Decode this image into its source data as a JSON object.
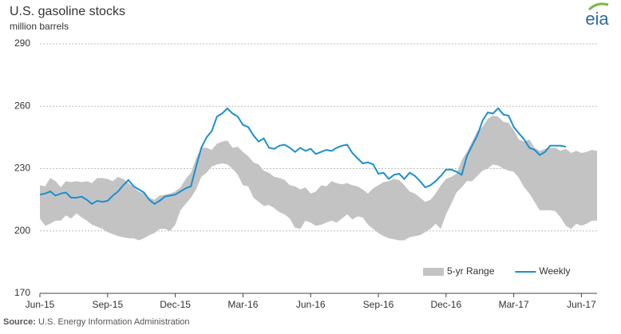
{
  "chart_data": {
    "type": "range-line",
    "title": "U.S. gasoline stocks",
    "subtitle": "million barrels",
    "logo": "eia",
    "source_label": "Source:",
    "source": "U.S. Energy Information Administration",
    "categories": [
      "Jun-15",
      null,
      null,
      null,
      null,
      null,
      null,
      null,
      null,
      null,
      null,
      null,
      null,
      "Sep-15",
      null,
      null,
      null,
      null,
      null,
      null,
      null,
      null,
      null,
      null,
      null,
      null,
      "Dec-15",
      null,
      null,
      null,
      null,
      null,
      null,
      null,
      null,
      null,
      null,
      null,
      null,
      "Mar-16",
      null,
      null,
      null,
      null,
      null,
      null,
      null,
      null,
      null,
      null,
      null,
      null,
      "Jun-16",
      null,
      null,
      null,
      null,
      null,
      null,
      null,
      null,
      null,
      null,
      null,
      null,
      "Sep-16",
      null,
      null,
      null,
      null,
      null,
      null,
      null,
      null,
      null,
      null,
      null,
      null,
      "Dec-16",
      null,
      null,
      null,
      null,
      null,
      null,
      null,
      null,
      null,
      null,
      null,
      null,
      "Mar-17",
      null,
      null,
      null,
      null,
      null,
      null,
      null,
      null,
      null,
      null,
      null,
      null,
      "Jun-17",
      null,
      null,
      null
    ],
    "series": [
      {
        "name": "5-yr Range",
        "color": "#c3c3c3",
        "low": [
          206,
          202.5,
          203.5,
          205,
          205,
          207.5,
          206,
          208.5,
          206.5,
          205,
          203,
          202,
          201,
          199.5,
          198.5,
          197.5,
          197,
          196.5,
          196.5,
          195.5,
          196.5,
          198,
          199,
          201,
          201,
          200,
          203,
          210,
          213,
          216,
          220,
          226,
          228,
          231,
          232,
          232.5,
          232,
          230,
          227,
          222,
          221.5,
          216,
          214,
          212,
          212.5,
          211,
          209,
          208,
          206,
          201.5,
          201,
          205,
          204,
          202.5,
          203,
          204,
          205,
          204,
          206,
          208,
          205.5,
          207,
          206.5,
          203,
          201,
          199,
          197.5,
          196.5,
          196,
          195.5,
          195.5,
          197,
          197.5,
          198,
          199.5,
          201,
          203.5,
          201,
          208,
          213,
          218.5,
          221,
          224,
          224,
          226.5,
          229,
          230,
          232,
          231.5,
          230,
          229,
          228.5,
          225.5,
          221,
          218,
          214,
          210,
          210,
          210,
          209.5,
          206.5,
          202.5,
          201,
          203.5,
          202.5,
          203.5,
          205,
          205
        ],
        "high": [
          222,
          221.5,
          225.5,
          224,
          221,
          224,
          223.5,
          224,
          223.5,
          224,
          223,
          225.5,
          225.5,
          225,
          224,
          226,
          225,
          223,
          221,
          219,
          218,
          216,
          215,
          217,
          217.5,
          218,
          219,
          221,
          225,
          228,
          235,
          240,
          240,
          239,
          242,
          243,
          243.5,
          240,
          240.5,
          238,
          236,
          233,
          232,
          229,
          228,
          226,
          225.5,
          224.5,
          222,
          221.5,
          220,
          221,
          218,
          219,
          222,
          221.5,
          224,
          223,
          222.5,
          223,
          222,
          221.5,
          220,
          218,
          220.5,
          222,
          223.5,
          224,
          225,
          224.5,
          222,
          219,
          218,
          216,
          214,
          215,
          218,
          222,
          225,
          226,
          227.5,
          234,
          238,
          243,
          248,
          250,
          254,
          255.5,
          255,
          252.5,
          252,
          248.5,
          244,
          243,
          244,
          240,
          238.5,
          239.5,
          240,
          240,
          238.5,
          239.5,
          237.5,
          238.5,
          237.5,
          238,
          239,
          238.5
        ]
      },
      {
        "name": "Weekly",
        "color": "#1b8fd2",
        "values": [
          217.5,
          218,
          219,
          217,
          218,
          218.5,
          216,
          216,
          216.5,
          215,
          213,
          214.5,
          214,
          214.5,
          217,
          219,
          222,
          224.5,
          221.5,
          220,
          218.5,
          215,
          213,
          214.5,
          216.5,
          217,
          217.5,
          219,
          220.5,
          221.5,
          231,
          240,
          245,
          248,
          255,
          256.5,
          259,
          256.5,
          255,
          251,
          250,
          246,
          243,
          244.5,
          240,
          239.5,
          241,
          241.5,
          240,
          238,
          240,
          238.5,
          239.5,
          237,
          238,
          239,
          238.5,
          240,
          241,
          241.5,
          237.5,
          235,
          232.5,
          233,
          232,
          227.5,
          228,
          225,
          227,
          227.5,
          225,
          228,
          226.5,
          224,
          221,
          222,
          224,
          226.5,
          229.5,
          229.5,
          228.5,
          227,
          236,
          241,
          246,
          253,
          257,
          256.5,
          259,
          256,
          255.5,
          250,
          247,
          244,
          240,
          239,
          236.5,
          238,
          241,
          241,
          241,
          240.5,
          null,
          null,
          null,
          null,
          null,
          null
        ]
      }
    ],
    "ylim": [
      170,
      290
    ],
    "yticks": [
      170,
      200,
      230,
      260,
      290
    ],
    "grid": true,
    "legend": "lower right"
  }
}
